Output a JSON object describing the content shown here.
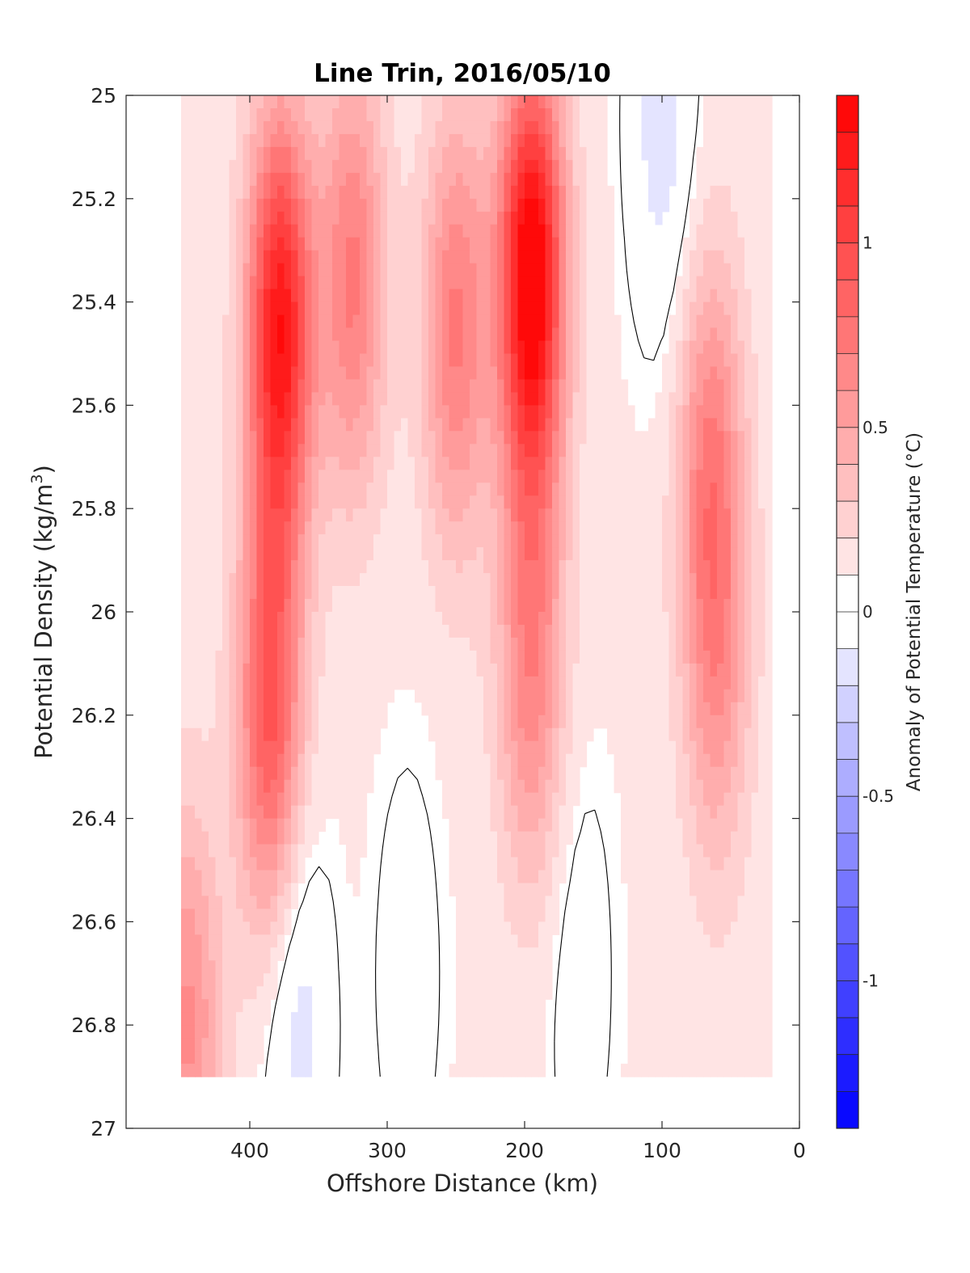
{
  "chart_data": {
    "type": "heatmap",
    "title": "Line Trin, 2016/05/10",
    "xlabel": "Offshore Distance (km)",
    "ylabel": "Potential Density (kg/m",
    "ylabel_sup": "3",
    "ylabel_close": ")",
    "colorbar_label": "Anomaly of Potential Temperature (°C)",
    "xlim": [
      490,
      0
    ],
    "ylim": [
      25,
      27
    ],
    "x_reversed": true,
    "y_reversed": true,
    "x_ticks": [
      400,
      300,
      200,
      100,
      0
    ],
    "x_tick_labels": [
      "400",
      "300",
      "200",
      "100",
      "0"
    ],
    "y_ticks": [
      25,
      25.2,
      25.4,
      25.6,
      25.8,
      26,
      26.2,
      26.4,
      26.6,
      26.8,
      27
    ],
    "y_tick_labels": [
      "25",
      "25.2",
      "25.4",
      "25.6",
      "25.8",
      "26",
      "26.2",
      "26.4",
      "26.6",
      "26.8",
      "27"
    ],
    "colorbar_range": [
      -1.4,
      1.4
    ],
    "colorbar_ticks": [
      1,
      0.5,
      0,
      -0.5,
      -1
    ],
    "colorbar_tick_labels": [
      "1",
      "0.5",
      "0",
      "-0.5",
      "-1"
    ],
    "colorbar_levels": 28,
    "color_warm": "#ff0000",
    "color_cold": "#0000ff",
    "color_neutral": "#ffffff",
    "zero_contour_color": "#000000",
    "data_coverage_x": [
      20,
      450
    ],
    "data_coverage_y": [
      25,
      26.9
    ],
    "anomaly_features": [
      {
        "x": 378,
        "y": 25.45,
        "anomaly": 1.15
      },
      {
        "x": 385,
        "y": 26.2,
        "anomaly": 0.8
      },
      {
        "x": 325,
        "y": 25.35,
        "anomaly": 0.6
      },
      {
        "x": 250,
        "y": 25.45,
        "anomaly": 0.6
      },
      {
        "x": 195,
        "y": 25.35,
        "anomaly": 1.35
      },
      {
        "x": 195,
        "y": 26.1,
        "anomaly": 0.55
      },
      {
        "x": 100,
        "y": 25.05,
        "anomaly": -0.3
      },
      {
        "x": 65,
        "y": 25.7,
        "anomaly": 0.5
      },
      {
        "x": 60,
        "y": 26.1,
        "anomaly": 0.4
      },
      {
        "x": 365,
        "y": 26.8,
        "anomaly": -0.3
      },
      {
        "x": 285,
        "y": 26.7,
        "anomaly": -0.15
      },
      {
        "x": 160,
        "y": 26.7,
        "anomaly": -0.15
      },
      {
        "x": 445,
        "y": 26.8,
        "anomaly": 0.5
      }
    ]
  }
}
